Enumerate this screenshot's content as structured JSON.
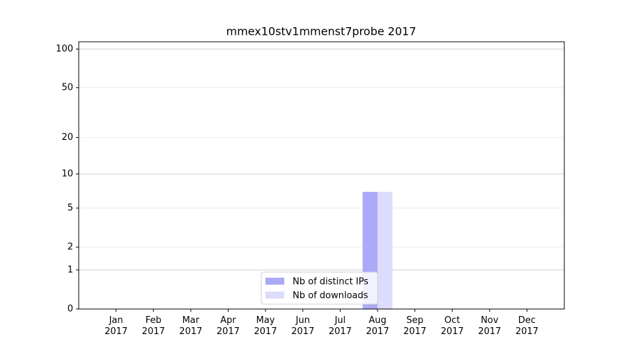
{
  "chart_data": {
    "type": "bar",
    "title": "mmex10stv1mmenst7probe 2017",
    "categories": [
      "Jan\n2017",
      "Feb\n2017",
      "Mar\n2017",
      "Apr\n2017",
      "May\n2017",
      "Jun\n2017",
      "Jul\n2017",
      "Aug\n2017",
      "Sep\n2017",
      "Oct\n2017",
      "Nov\n2017",
      "Dec\n2017"
    ],
    "series": [
      {
        "name": "Nb of distinct IPs",
        "color": "#aaaaf8",
        "values": [
          0,
          0,
          0,
          0,
          0,
          0,
          0,
          7,
          0,
          0,
          0,
          0
        ]
      },
      {
        "name": "Nb of downloads",
        "color": "#dcdcfc",
        "values": [
          0,
          0,
          0,
          0,
          0,
          0,
          0,
          7,
          0,
          0,
          0,
          0
        ]
      }
    ],
    "yscale": "log1p",
    "ylim": [
      0,
      114
    ],
    "yticks": [
      0,
      1,
      2,
      5,
      10,
      20,
      50,
      100
    ],
    "grid": true,
    "legend": "lower center"
  }
}
